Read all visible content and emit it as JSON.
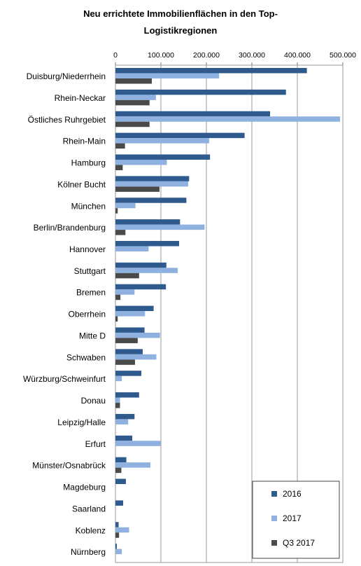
{
  "chart_data": {
    "type": "bar",
    "orientation": "horizontal",
    "title": "Neu errichtete Immobilienflächen in den Top-Logistikregionen",
    "title_lines": [
      "Neu errichtete Immobilienflächen in den Top-",
      "Logistikregionen"
    ],
    "xlabel": "",
    "ylabel": "",
    "xlim": [
      0,
      500000
    ],
    "x_tick_labels": [
      "0",
      "100.000",
      "200.000",
      "300.000",
      "400.000",
      "500.000"
    ],
    "x_ticks": [
      0,
      100000,
      200000,
      300000,
      400000,
      500000
    ],
    "x_axis_position": "top",
    "grid": true,
    "legend_position": "bottom-right",
    "categories": [
      "Duisburg/Niederrhein",
      "Rhein-Neckar",
      "Östliches Ruhrgebiet",
      "Rhein-Main",
      "Hamburg",
      "Kölner Bucht",
      "München",
      "Berlin/Brandenburg",
      "Hannover",
      "Stuttgart",
      "Bremen",
      "Oberrhein",
      "Mitte D",
      "Schwaben",
      "Würzburg/Schweinfurt",
      "Donau",
      "Leipzig/Halle",
      "Erfurt",
      "Münster/Osnabrück",
      "Magdeburg",
      "Saarland",
      "Koblenz",
      "Nürnberg"
    ],
    "series": [
      {
        "name": "2016",
        "color": "#2e5a8e",
        "values": [
          421000,
          375000,
          340000,
          284000,
          208000,
          162000,
          156000,
          142000,
          140000,
          112000,
          111000,
          84000,
          64000,
          60000,
          57000,
          52000,
          42000,
          37000,
          24000,
          23000,
          17000,
          7000,
          3000
        ]
      },
      {
        "name": "2017",
        "color": "#8fb1e0",
        "values": [
          228000,
          89000,
          494000,
          206000,
          113000,
          160000,
          44000,
          196000,
          73000,
          137000,
          42000,
          65000,
          98000,
          90000,
          14000,
          10000,
          28000,
          100000,
          77000,
          0,
          0,
          30000,
          14000
        ]
      },
      {
        "name": "Q3 2017",
        "color": "#4a4a4a",
        "values": [
          80000,
          75000,
          75000,
          21000,
          16000,
          97000,
          5000,
          22000,
          0,
          52000,
          11000,
          5000,
          49000,
          43000,
          0,
          10000,
          0,
          0,
          13000,
          0,
          0,
          8000,
          0
        ]
      }
    ]
  }
}
